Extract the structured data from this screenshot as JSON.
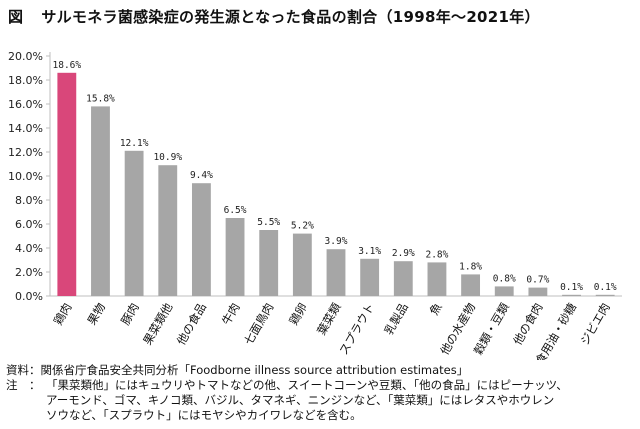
{
  "figure": {
    "number": "図",
    "title": "サルモネラ菌感染症の発生源となった食品の割合（1998年～2021年）"
  },
  "chart_data": {
    "type": "bar",
    "categories": [
      "鶏肉",
      "果物",
      "豚肉",
      "果菜類他",
      "他の食品",
      "牛肉",
      "七面鳥肉",
      "鶏卵",
      "葉菜類",
      "スプラウト",
      "乳製品",
      "魚",
      "他の水産物",
      "穀類・豆類",
      "他の食肉",
      "食用油・砂糖",
      "ジビエ肉"
    ],
    "values": [
      18.6,
      15.8,
      12.1,
      10.9,
      9.4,
      6.5,
      5.5,
      5.2,
      3.9,
      3.1,
      2.9,
      2.8,
      1.8,
      0.8,
      0.7,
      0.1,
      0.1
    ],
    "value_labels": [
      "18.6%",
      "15.8%",
      "12.1%",
      "10.9%",
      "9.4%",
      "6.5%",
      "5.5%",
      "5.2%",
      "3.9%",
      "3.1%",
      "2.9%",
      "2.8%",
      "1.8%",
      "0.8%",
      "0.7%",
      "0.1%",
      "0.1%"
    ],
    "yticks": [
      "0.0%",
      "2.0%",
      "4.0%",
      "6.0%",
      "8.0%",
      "10.0%",
      "12.0%",
      "14.0%",
      "16.0%",
      "18.0%",
      "20.0%"
    ],
    "ylim": [
      0,
      20
    ],
    "grid": false,
    "colors": {
      "highlight": "#d9477a",
      "default": "#a6a6a6",
      "axis": "#bfbfbf"
    },
    "highlighted_category": "鶏肉"
  },
  "notes": {
    "source_key": "資料：",
    "source_text": "関係省庁食品安全共同分析「Foodborne illness source attribution estimates」",
    "note_key": "注　：",
    "note_lines": [
      "「果菜類他」にはキュウリやトマトなどの他、スイートコーンや豆類、「他の食品」にはピーナッツ、",
      "アーモンド、ゴマ、キノコ類、バジル、タマネギ、ニンジンなど、「葉菜類」にはレタスやホウレン",
      "ソウなど、「スプラウト」にはモヤシやカイワレなどを含む。"
    ]
  }
}
